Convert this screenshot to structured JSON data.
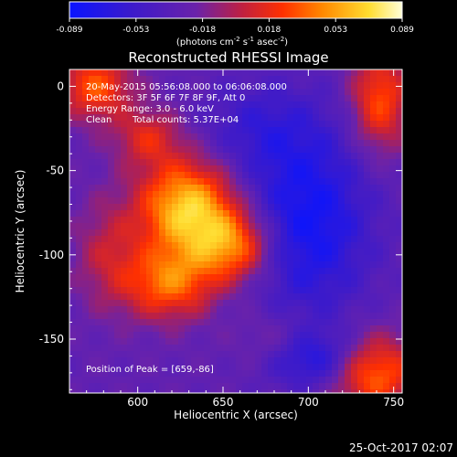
{
  "chart_data": {
    "type": "heatmap",
    "title": "Reconstructed RHESSI Image",
    "xlabel": "Heliocentric X (arcsec)",
    "ylabel": "Heliocentric Y (arcsec)",
    "xlim": [
      560,
      755
    ],
    "ylim": [
      -182,
      10
    ],
    "x_ticks": [
      600,
      650,
      700,
      750
    ],
    "y_ticks": [
      0,
      -50,
      -100,
      -150
    ],
    "colorbar": {
      "range": [
        -0.089,
        0.089
      ],
      "ticks": [
        "-0.089",
        "-0.053",
        "-0.018",
        "0.018",
        "0.053",
        "0.089"
      ],
      "unit_label_parts": [
        "(photons cm",
        "-2",
        " s",
        "-1",
        " asec",
        "-2",
        ")"
      ],
      "colormap": "blue-purple-red-orange-yellow-white"
    },
    "annotations": {
      "time_range": "20-May-2015 05:56:08.000 to 06:06:08.000",
      "detectors": "Detectors: 3F 5F 6F 7F 8F 9F, Att 0",
      "energy_range": "Energy Range: 3.0 - 6.0 keV",
      "method": "Clean",
      "total_counts": "Total counts: 5.37E+04",
      "peak_position": "Position of Peak = [659,-86]"
    },
    "blobs": [
      {
        "x": 629,
        "y": -72,
        "sx": 20,
        "sy": 20,
        "amp": 0.095
      },
      {
        "x": 656,
        "y": -95,
        "sx": 17,
        "sy": 15,
        "amp": 0.07
      },
      {
        "x": 618,
        "y": -117,
        "sx": 18,
        "sy": 15,
        "amp": 0.065
      },
      {
        "x": 606,
        "y": -30,
        "sx": 14,
        "sy": 12,
        "amp": 0.04
      },
      {
        "x": 575,
        "y": 0,
        "sx": 15,
        "sy": 14,
        "amp": 0.06
      },
      {
        "x": 583,
        "y": -100,
        "sx": 14,
        "sy": 22,
        "amp": 0.03
      },
      {
        "x": 742,
        "y": -8,
        "sx": 12,
        "sy": 22,
        "amp": 0.06
      },
      {
        "x": 738,
        "y": -170,
        "sx": 18,
        "sy": 16,
        "amp": 0.07
      },
      {
        "x": 680,
        "y": -150,
        "sx": 16,
        "sy": 12,
        "amp": 0.02
      },
      {
        "x": 700,
        "y": -80,
        "sx": 26,
        "sy": 40,
        "amp": -0.055
      },
      {
        "x": 705,
        "y": -162,
        "sx": 20,
        "sy": 12,
        "amp": -0.045
      },
      {
        "x": 670,
        "y": -25,
        "sx": 25,
        "sy": 20,
        "amp": -0.025
      }
    ],
    "base_level": -0.028,
    "footer_date": "25-Oct-2017 02:07"
  }
}
